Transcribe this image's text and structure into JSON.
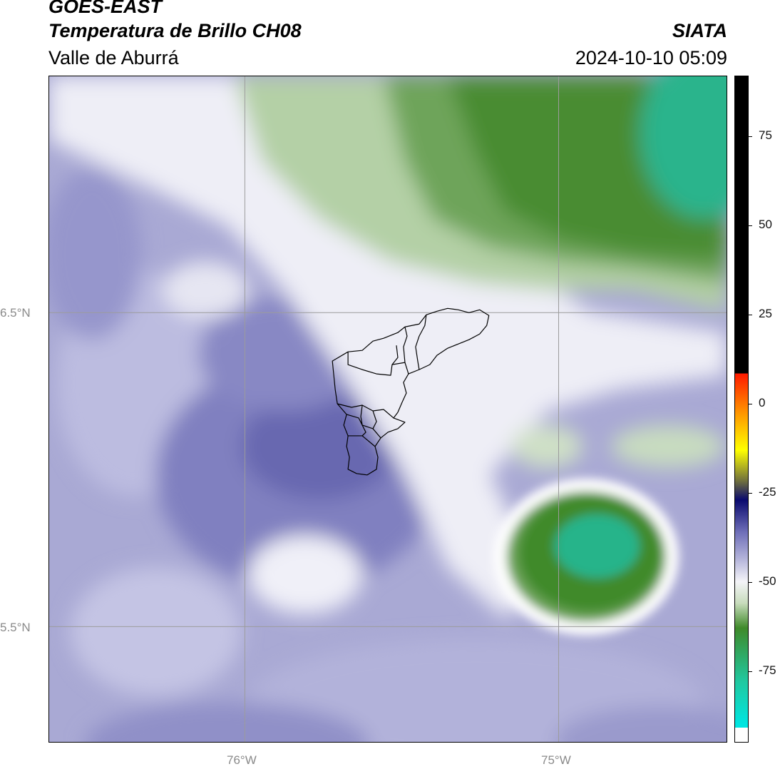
{
  "header": {
    "satellite": "GOES-EAST",
    "product": "Temperatura de Brillo CH08",
    "region": "Valle de Aburrá",
    "agency": "SIATA",
    "datetime": "2024-10-10 05:09"
  },
  "map": {
    "lat_labels": [
      "6.5°N",
      "5.5°N"
    ],
    "lon_labels": [
      "76°W",
      "75°W"
    ],
    "lat_range": [
      5.13,
      7.25
    ],
    "lon_range": [
      -76.62,
      -74.47
    ],
    "gridline_color": "#9c9c9c"
  },
  "colorbar": {
    "ticks": [
      "75",
      "50",
      "25",
      "0",
      "-25",
      "-50",
      "-75"
    ],
    "tick_values": [
      75,
      50,
      25,
      0,
      -25,
      -50,
      -75
    ],
    "range": [
      -95,
      92
    ],
    "colors": {
      "green_dark": "#3f8a2a",
      "teal": "#20c8a0",
      "cyan": "#00e5e0",
      "white": "#f4f4f8",
      "lavender": "#b8b8dc",
      "purple": "#6e6eb8",
      "navy": "#0a0a6e",
      "yellow": "#ffff00",
      "orange": "#ff9a00",
      "red": "#ff1a00",
      "black": "#000000"
    }
  }
}
